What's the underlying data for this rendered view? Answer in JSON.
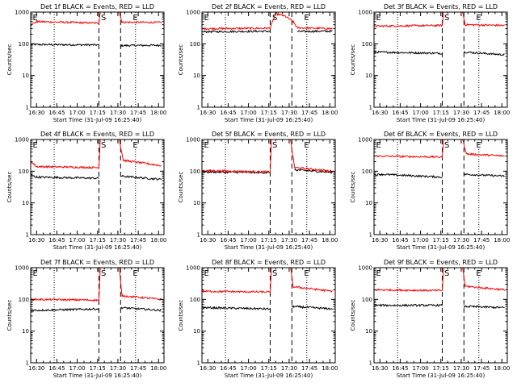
{
  "colors": {
    "events": "#000000",
    "lld": "#ff0000",
    "axes": "#000000"
  },
  "chart_data": [
    {
      "type": "line",
      "title": "Det 1f BLACK = Events, RED = LLD",
      "xlabel": "Start Time (31-Jul-09 16:25:40)",
      "ylabel": "Counts/sec",
      "y_scale": "log",
      "ylim": [
        1,
        1000
      ],
      "ytick_labels": [
        "1",
        "10",
        "100",
        "1000"
      ],
      "xtick_labels": [
        "16:30",
        "16:45",
        "17:00",
        "17:15",
        "17:30",
        "17:45",
        "18:00"
      ],
      "markers": [
        "E",
        "S",
        "E"
      ],
      "series": [
        {
          "name": "Events",
          "segments": [
            {
              "x": [
                "16:26",
                "17:16"
              ],
              "y": [
                95,
                92
              ]
            },
            {
              "x": [
                "17:32",
                "18:02"
              ],
              "y": [
                88,
                90
              ]
            }
          ]
        },
        {
          "name": "LLD",
          "segments": [
            {
              "x": [
                "16:26",
                "16:30",
                "17:16",
                "17:17"
              ],
              "y": [
                400,
                500,
                450,
                1000
              ]
            },
            {
              "x": [
                "17:31",
                "17:33",
                "18:02"
              ],
              "y": [
                1000,
                480,
                470
              ]
            }
          ]
        }
      ]
    },
    {
      "type": "line",
      "title": "Det 2f BLACK = Events, RED = LLD",
      "xlabel": "Start Time (31-Jul-09 16:25:40)",
      "ylabel": "Counts/sec",
      "y_scale": "log",
      "ylim": [
        1,
        1000
      ],
      "ytick_labels": [
        "1",
        "10",
        "100",
        "1000"
      ],
      "xtick_labels": [
        "16:30",
        "16:45",
        "17:00",
        "17:15",
        "17:30",
        "17:45",
        "18:00"
      ],
      "markers": [
        "E",
        "S",
        "E"
      ],
      "series": [
        {
          "name": "Events",
          "segments": [
            {
              "x": [
                "16:26",
                "17:16"
              ],
              "y": [
                240,
                250
              ]
            },
            {
              "x": [
                "17:36",
                "18:02"
              ],
              "y": [
                245,
                250
              ]
            }
          ]
        },
        {
          "name": "LLD",
          "segments": [
            {
              "x": [
                "16:26",
                "17:16",
                "17:20",
                "17:27",
                "17:33",
                "17:36",
                "18:02"
              ],
              "y": [
                300,
                310,
                900,
                750,
                500,
                320,
                300
              ]
            }
          ]
        }
      ]
    },
    {
      "type": "line",
      "title": "Det 3f BLACK = Events, RED = LLD",
      "xlabel": "Start Time (31-Jul-09 16:25:40)",
      "ylabel": "Counts/sec",
      "y_scale": "log",
      "ylim": [
        1,
        1000
      ],
      "ytick_labels": [
        "1",
        "10",
        "100",
        "1000"
      ],
      "xtick_labels": [
        "16:30",
        "16:45",
        "17:00",
        "17:15",
        "17:30",
        "17:45",
        "18:00"
      ],
      "markers": [
        "E",
        "S",
        "E"
      ],
      "series": [
        {
          "name": "Events",
          "segments": [
            {
              "x": [
                "16:26",
                "17:16"
              ],
              "y": [
                55,
                50
              ]
            },
            {
              "x": [
                "17:32",
                "18:02"
              ],
              "y": [
                55,
                45
              ]
            }
          ]
        },
        {
          "name": "LLD",
          "segments": [
            {
              "x": [
                "16:26",
                "17:16",
                "17:17"
              ],
              "y": [
                360,
                380,
                1000
              ]
            },
            {
              "x": [
                "17:31",
                "17:33",
                "18:02"
              ],
              "y": [
                1000,
                400,
                380
              ]
            }
          ]
        }
      ]
    },
    {
      "type": "line",
      "title": "Det 4f BLACK = Events, RED = LLD",
      "xlabel": "Start Time (31-Jul-09 16:25:40)",
      "ylabel": "Counts/sec",
      "y_scale": "log",
      "ylim": [
        1,
        1000
      ],
      "ytick_labels": [
        "1",
        "10",
        "100",
        "1000"
      ],
      "xtick_labels": [
        "16:30",
        "16:45",
        "17:00",
        "17:15",
        "17:30",
        "17:45",
        "18:00"
      ],
      "markers": [
        "E",
        "S",
        "E"
      ],
      "series": [
        {
          "name": "Events",
          "segments": [
            {
              "x": [
                "16:26",
                "16:30",
                "17:16"
              ],
              "y": [
                75,
                65,
                60
              ]
            },
            {
              "x": [
                "17:32",
                "18:02"
              ],
              "y": [
                70,
                55
              ]
            }
          ]
        },
        {
          "name": "LLD",
          "segments": [
            {
              "x": [
                "16:26",
                "16:30",
                "17:16",
                "17:17"
              ],
              "y": [
                200,
                140,
                130,
                1000
              ]
            },
            {
              "x": [
                "17:31",
                "17:34",
                "18:02"
              ],
              "y": [
                1000,
                220,
                150
              ]
            }
          ]
        }
      ]
    },
    {
      "type": "line",
      "title": "Det 5f BLACK = Events, RED = LLD",
      "xlabel": "Start Time (31-Jul-09 16:25:40)",
      "ylabel": "Counts/sec",
      "y_scale": "log",
      "ylim": [
        1,
        1000
      ],
      "ytick_labels": [
        "1",
        "10",
        "100",
        "1000"
      ],
      "xtick_labels": [
        "16:30",
        "16:45",
        "17:00",
        "17:15",
        "17:30",
        "17:45",
        "18:00"
      ],
      "markers": [
        "E",
        "S",
        "E"
      ],
      "series": [
        {
          "name": "Events",
          "segments": [
            {
              "x": [
                "16:26",
                "17:16"
              ],
              "y": [
                95,
                90
              ]
            },
            {
              "x": [
                "17:34",
                "18:02"
              ],
              "y": [
                110,
                92
              ]
            }
          ]
        },
        {
          "name": "LLD",
          "segments": [
            {
              "x": [
                "16:26",
                "17:16",
                "17:17"
              ],
              "y": [
                105,
                95,
                1000
              ]
            },
            {
              "x": [
                "17:31",
                "17:34",
                "18:02"
              ],
              "y": [
                1000,
                130,
                100
              ]
            }
          ]
        }
      ]
    },
    {
      "type": "line",
      "title": "Det 6f BLACK = Events, RED = LLD",
      "xlabel": "Start Time (31-Jul-09 16:25:40)",
      "ylabel": "Counts/sec",
      "y_scale": "log",
      "ylim": [
        1,
        1000
      ],
      "ytick_labels": [
        "1",
        "10",
        "100",
        "1000"
      ],
      "xtick_labels": [
        "16:30",
        "16:45",
        "17:00",
        "17:15",
        "17:30",
        "17:45",
        "18:00"
      ],
      "markers": [
        "E",
        "S",
        "E"
      ],
      "series": [
        {
          "name": "Events",
          "segments": [
            {
              "x": [
                "16:26",
                "16:30",
                "17:16"
              ],
              "y": [
                75,
                80,
                65
              ]
            },
            {
              "x": [
                "17:32",
                "18:02"
              ],
              "y": [
                80,
                70
              ]
            }
          ]
        },
        {
          "name": "LLD",
          "segments": [
            {
              "x": [
                "16:26",
                "17:16",
                "17:17"
              ],
              "y": [
                300,
                280,
                1000
              ]
            },
            {
              "x": [
                "17:31",
                "17:34",
                "18:02"
              ],
              "y": [
                1000,
                350,
                300
              ]
            }
          ]
        }
      ]
    },
    {
      "type": "line",
      "title": "Det 7f BLACK = Events, RED = LLD",
      "xlabel": "Start Time (31-Jul-09 16:25:40)",
      "ylabel": "Counts/sec",
      "y_scale": "log",
      "ylim": [
        1,
        1000
      ],
      "ytick_labels": [
        "1",
        "10",
        "100",
        "1000"
      ],
      "xtick_labels": [
        "16:30",
        "16:45",
        "17:00",
        "17:15",
        "17:30",
        "17:45",
        "18:00"
      ],
      "markers": [
        "E",
        "S",
        "E"
      ],
      "series": [
        {
          "name": "Events",
          "segments": [
            {
              "x": [
                "16:26",
                "17:16"
              ],
              "y": [
                45,
                50
              ]
            },
            {
              "x": [
                "17:32",
                "18:02"
              ],
              "y": [
                55,
                45
              ]
            }
          ]
        },
        {
          "name": "LLD",
          "segments": [
            {
              "x": [
                "16:26",
                "17:16",
                "17:17"
              ],
              "y": [
                100,
                95,
                1000
              ]
            },
            {
              "x": [
                "17:31",
                "17:33",
                "18:02"
              ],
              "y": [
                1000,
                130,
                100
              ]
            }
          ]
        }
      ]
    },
    {
      "type": "line",
      "title": "Det 8f BLACK = Events, RED = LLD",
      "xlabel": "Start Time (31-Jul-09 16:25:40)",
      "ylabel": "Counts/sec",
      "y_scale": "log",
      "ylim": [
        1,
        1000
      ],
      "ytick_labels": [
        "1",
        "10",
        "100",
        "1000"
      ],
      "xtick_labels": [
        "16:30",
        "16:45",
        "17:00",
        "17:15",
        "17:30",
        "17:45",
        "18:00"
      ],
      "markers": [
        "E",
        "S",
        "E"
      ],
      "series": [
        {
          "name": "Events",
          "segments": [
            {
              "x": [
                "16:26",
                "17:16"
              ],
              "y": [
                55,
                50
              ]
            },
            {
              "x": [
                "17:32",
                "18:02"
              ],
              "y": [
                60,
                50
              ]
            }
          ]
        },
        {
          "name": "LLD",
          "segments": [
            {
              "x": [
                "16:26",
                "17:16",
                "17:17"
              ],
              "y": [
                180,
                170,
                1000
              ]
            },
            {
              "x": [
                "17:31",
                "17:33",
                "18:02"
              ],
              "y": [
                1000,
                250,
                180
              ]
            }
          ]
        }
      ]
    },
    {
      "type": "line",
      "title": "Det 9f BLACK = Events, RED = LLD",
      "xlabel": "Start Time (31-Jul-09 16:25:40)",
      "ylabel": "Counts/sec",
      "y_scale": "log",
      "ylim": [
        1,
        1000
      ],
      "ytick_labels": [
        "1",
        "10",
        "100",
        "1000"
      ],
      "xtick_labels": [
        "16:30",
        "16:45",
        "17:00",
        "17:15",
        "17:30",
        "17:45",
        "18:00"
      ],
      "markers": [
        "E",
        "S",
        "E"
      ],
      "series": [
        {
          "name": "Events",
          "segments": [
            {
              "x": [
                "16:26",
                "17:16"
              ],
              "y": [
                65,
                65
              ]
            },
            {
              "x": [
                "17:32",
                "18:02"
              ],
              "y": [
                60,
                55
              ]
            }
          ]
        },
        {
          "name": "LLD",
          "segments": [
            {
              "x": [
                "16:26",
                "17:16",
                "17:17"
              ],
              "y": [
                200,
                190,
                1000
              ]
            },
            {
              "x": [
                "17:31",
                "17:33",
                "18:02"
              ],
              "y": [
                1000,
                260,
                200
              ]
            }
          ]
        }
      ]
    }
  ]
}
